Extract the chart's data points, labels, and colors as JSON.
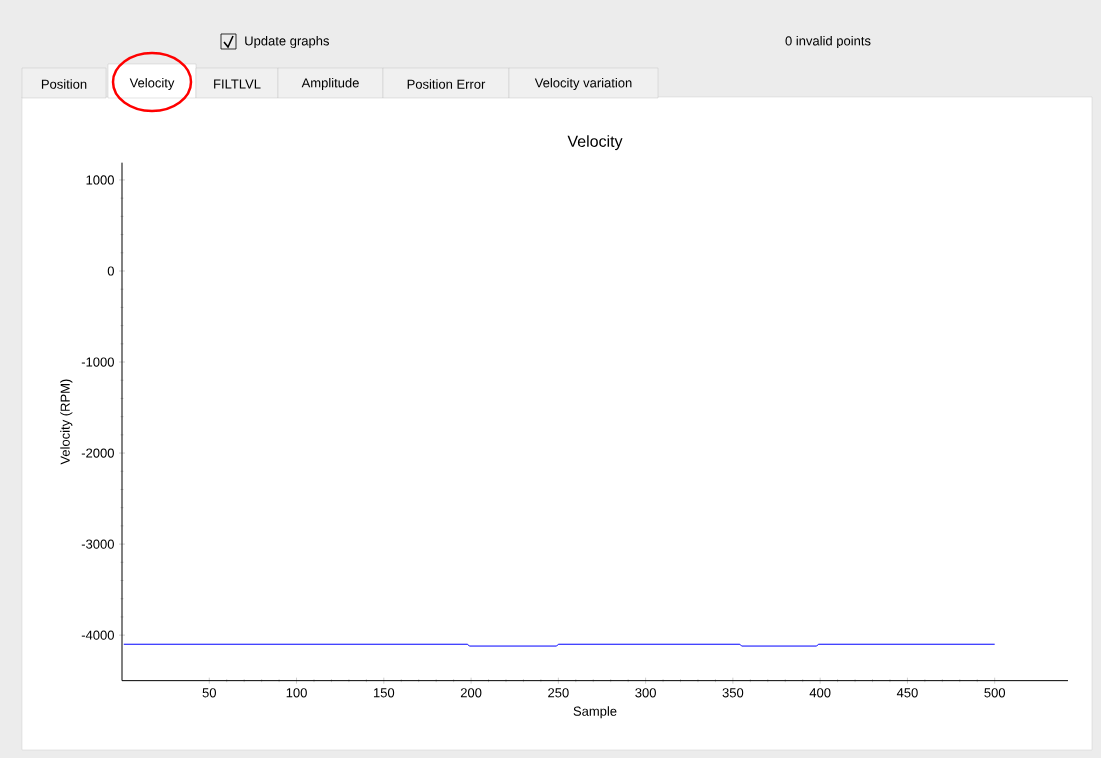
{
  "chart_data": {
    "type": "line",
    "title": "Velocity",
    "xlabel": "Sample",
    "ylabel": "Velocity (RPM)",
    "annotations": [
      "Update graphs",
      "0 invalid points",
      "Position",
      "Velocity",
      "FILTLVL",
      "Amplitude",
      "Position Error",
      "Velocity variation"
    ],
    "x": [
      1,
      198,
      199,
      249,
      250,
      354,
      355,
      398,
      399,
      500
    ],
    "series": [
      {
        "color": "#0000ff",
        "values": [
          -4100,
          -4100,
          -4120,
          -4120,
          -4100,
          -4100,
          -4120,
          -4120,
          -4100,
          -4100
        ]
      }
    ],
    "xlim": [
      0,
      542
    ],
    "ylim": [
      -4500,
      1190
    ],
    "xticks": [
      50,
      100,
      150,
      200,
      250,
      300,
      350,
      400,
      450,
      500
    ],
    "yticks": [
      -4000,
      -3000,
      -2000,
      -1000,
      0,
      1000
    ],
    "grid": false,
    "marker": "none",
    "line_style": "solid"
  }
}
